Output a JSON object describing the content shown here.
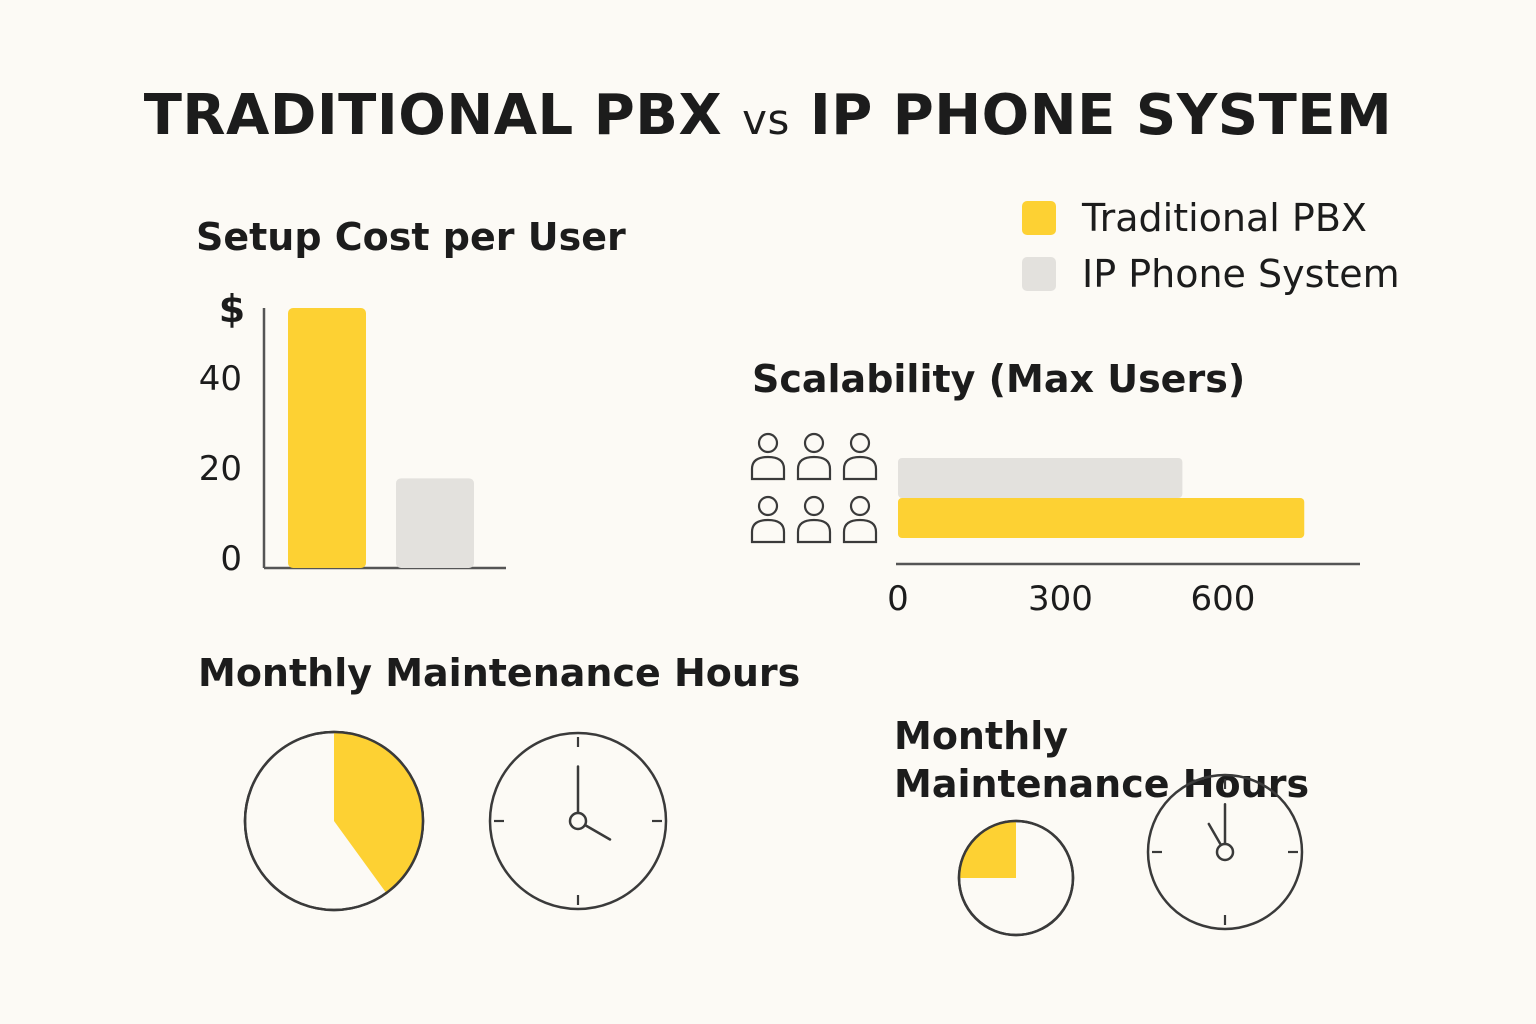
{
  "title": {
    "main": "TRADITIONAL PBX",
    "vs": "vs",
    "tail": "IP PHONE SYSTEM"
  },
  "colors": {
    "traditional": "#fdd133",
    "ip": "#e3e1dd",
    "axis": "#555555",
    "outline": "#3a3a3a"
  },
  "legend": [
    {
      "name": "Traditional PBX",
      "color": "#fdd133"
    },
    {
      "name": "IP Phone System",
      "color": "#e3e1dd"
    }
  ],
  "chart_data": [
    {
      "type": "bar",
      "title": "Setup Cost per User",
      "ylabel": "$",
      "yticks": [
        0,
        20,
        40
      ],
      "ylim": [
        0,
        58
      ],
      "categories": [
        "Traditional PBX",
        "IP Phone System"
      ],
      "values": [
        58,
        20
      ]
    },
    {
      "type": "bar",
      "orientation": "horizontal",
      "title": "Scalability (Max Users)",
      "icon": "users-icon",
      "xticks": [
        0,
        300,
        600
      ],
      "xlim": [
        0,
        850
      ],
      "categories": [
        "IP Phone System",
        "Traditional PBX"
      ],
      "values": [
        525,
        750
      ]
    },
    {
      "type": "pie",
      "title": "Monthly Maintenance Hours",
      "fraction": 0.4,
      "series_name": "Traditional PBX",
      "clock": {
        "hour": 4,
        "minute": 0
      },
      "icon": "clock-icon"
    },
    {
      "type": "pie",
      "title": "Monthly Maintenance Hours",
      "fraction": 0.25,
      "series_name": "Traditional PBX",
      "clock": {
        "hour": 11,
        "minute": 0
      },
      "icon": "clock-icon"
    }
  ]
}
